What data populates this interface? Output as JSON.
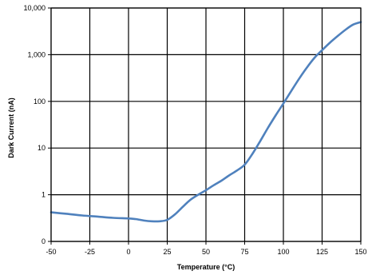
{
  "chart_data": {
    "type": "line",
    "title": "",
    "xlabel": "Temperature (°C)",
    "ylabel": "Dark Current (nA)",
    "xlim": [
      -50,
      150
    ],
    "x_ticks": [
      -50,
      -25,
      0,
      25,
      50,
      75,
      100,
      125,
      150
    ],
    "x_tick_labels": [
      "-50",
      "-25",
      "0",
      "25",
      "50",
      "75",
      "100",
      "125",
      "150"
    ],
    "y_scale": "log",
    "y_tick_values": [
      0.1,
      1,
      10,
      100,
      1000,
      10000
    ],
    "y_tick_labels": [
      "0",
      "1",
      "10",
      "100",
      "1,000",
      "10,000"
    ],
    "ylim": [
      0.1,
      10000
    ],
    "grid": true,
    "legend": "none",
    "series": [
      {
        "color": "#4f81bd",
        "x": [
          -50,
          -40,
          -30,
          -20,
          -10,
          0,
          5,
          10,
          15,
          20,
          25,
          30,
          35,
          40,
          45,
          50,
          55,
          60,
          65,
          70,
          75,
          80,
          85,
          90,
          95,
          100,
          105,
          110,
          115,
          120,
          125,
          130,
          135,
          140,
          145,
          150
        ],
        "y": [
          0.42,
          0.39,
          0.36,
          0.34,
          0.32,
          0.31,
          0.3,
          0.28,
          0.27,
          0.27,
          0.29,
          0.38,
          0.55,
          0.78,
          1.0,
          1.25,
          1.6,
          2.0,
          2.6,
          3.3,
          4.4,
          7.5,
          14,
          27,
          50,
          90,
          165,
          300,
          520,
          850,
          1250,
          1800,
          2500,
          3400,
          4400,
          5000
        ]
      }
    ]
  }
}
